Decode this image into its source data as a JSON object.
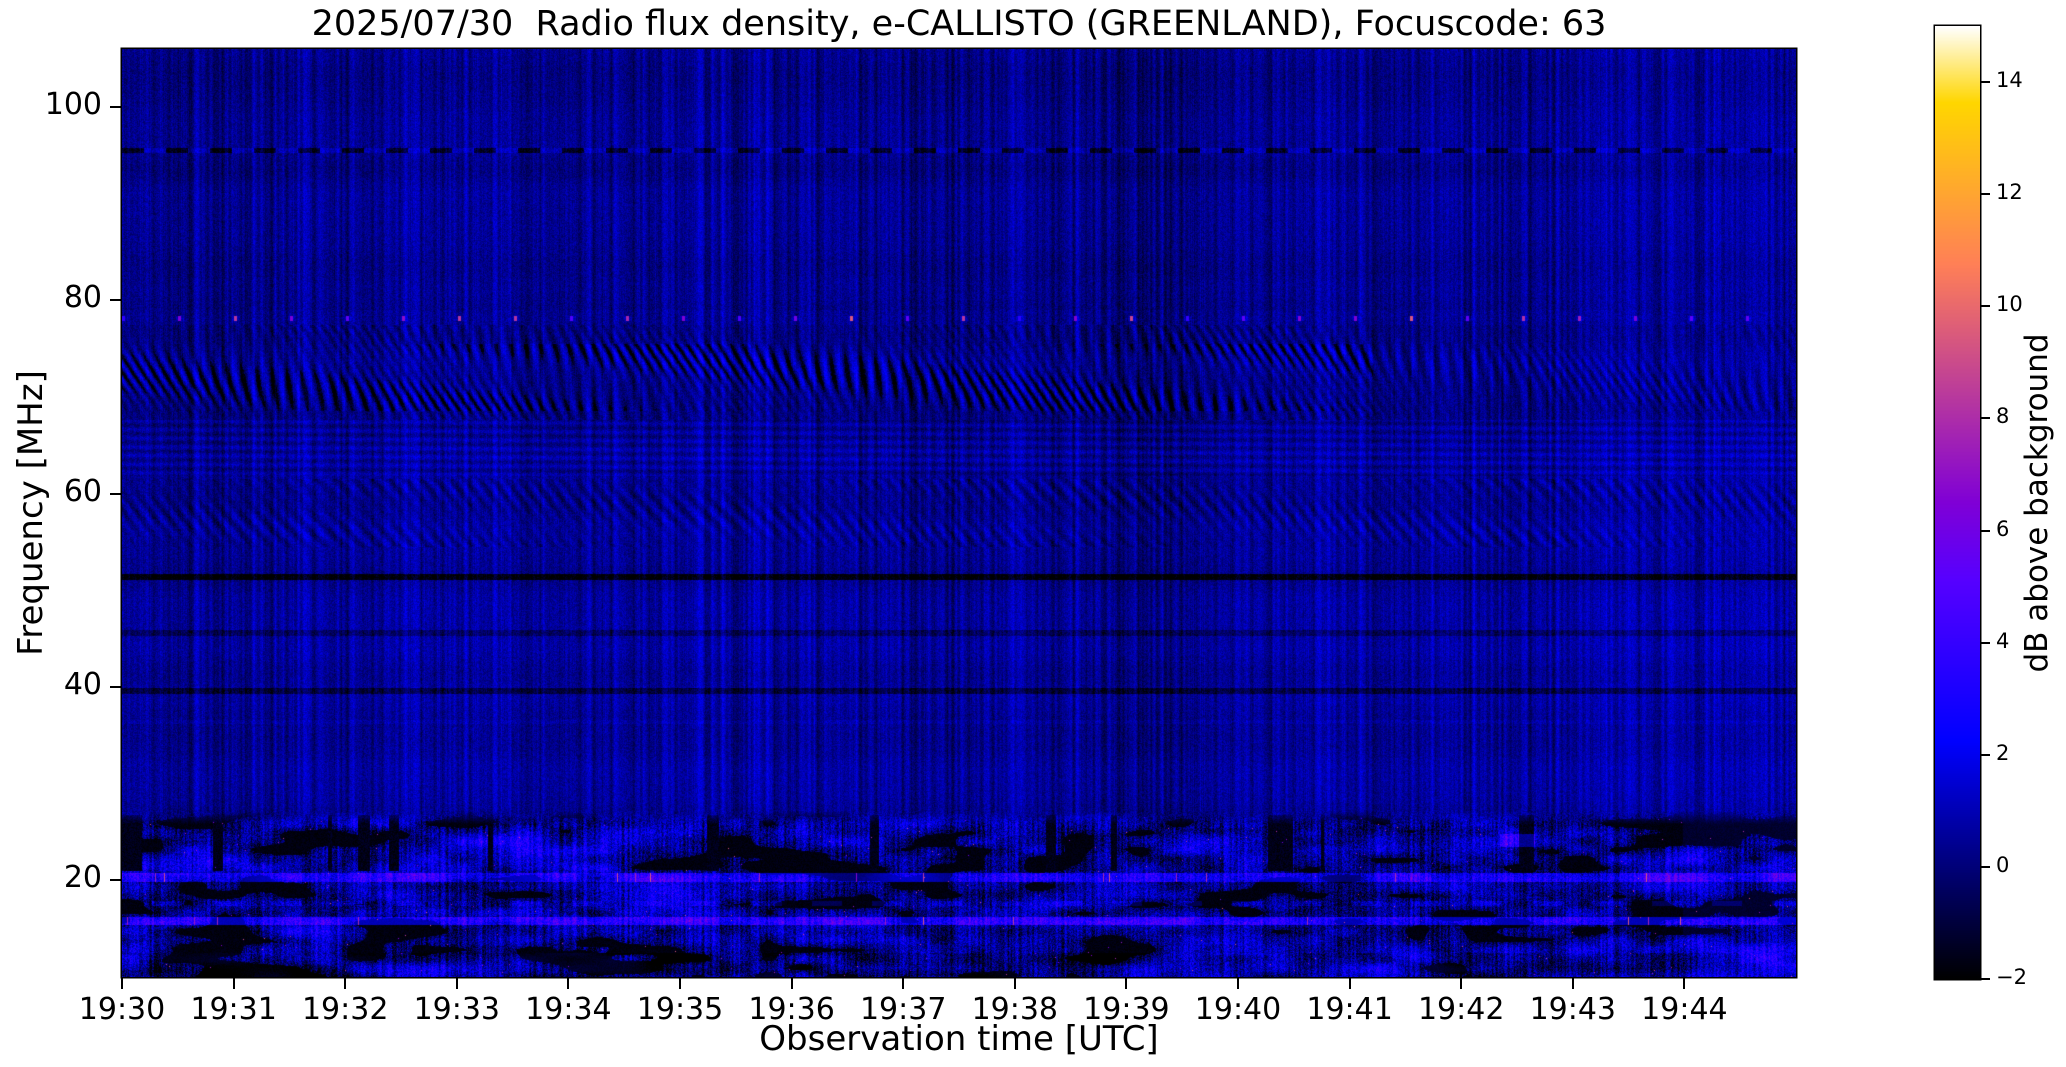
{
  "chart_data": {
    "type": "heatmap",
    "title": "2025/07/30  Radio flux density, e-CALLISTO (GREENLAND), Focuscode: 63",
    "xlabel": "Observation time [UTC]",
    "ylabel": "Frequency [MHz]",
    "x_ticks": [
      "19:30",
      "19:31",
      "19:32",
      "19:33",
      "19:34",
      "19:35",
      "19:36",
      "19:37",
      "19:38",
      "19:39",
      "19:40",
      "19:41",
      "19:42",
      "19:43",
      "19:44"
    ],
    "x_range": [
      "19:30",
      "19:45"
    ],
    "y_ticks": [
      100,
      80,
      60,
      40,
      20
    ],
    "y_range_mhz": [
      10,
      106
    ],
    "grid": false,
    "colorbar": {
      "label": "dB above background",
      "ticks": [
        14,
        12,
        10,
        8,
        6,
        4,
        2,
        0,
        -2
      ],
      "range": [
        -2,
        15
      ],
      "colormap": "gnuplot2"
    },
    "features": {
      "description": [
        "deep-blue quiet background near 0-1 dB with fine vertical scintillation striping",
        "periodic bright pink interference dots along 78 MHz, roughly every 30 s",
        "herringbone ionospheric striation band between 68 and 77 MHz, strongest before 19:41",
        "weaker wavy striation band between 55 and 61 MHz",
        "dashed dark channel near 95.5 MHz",
        "dark horizontal RFI-notch lines near 51.4, 45.6 and 39.6 MHz",
        "strong broadband terrestrial noise below ~27 MHz with black dropouts and 2-9 dB speckle",
        "bright HF station lines near 20 and 16 MHz with sporadic pink bursts"
      ],
      "dashed_dark_line_mhz": 95.5,
      "dotted_interference_line_mhz": 78.1,
      "striation_bands_mhz": [
        [
          67.6,
          77.4
        ],
        [
          54.5,
          61.5
        ]
      ],
      "streak_zone_mhz": [
        61.8,
        67.6
      ],
      "dark_lines_mhz": [
        51.4,
        45.6,
        39.6
      ],
      "dark_line_depth_db": [
        2.3,
        1.0,
        1.5
      ],
      "broadband_noise_below_mhz": 27.2,
      "bright_hf_lines_mhz": [
        20.3,
        15.8
      ],
      "background_level_db": 0.55
    }
  }
}
